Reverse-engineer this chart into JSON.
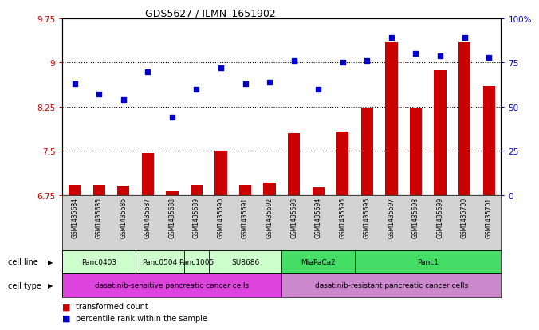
{
  "title": "GDS5627 / ILMN_1651902",
  "samples": [
    "GSM1435684",
    "GSM1435685",
    "GSM1435686",
    "GSM1435687",
    "GSM1435688",
    "GSM1435689",
    "GSM1435690",
    "GSM1435691",
    "GSM1435692",
    "GSM1435693",
    "GSM1435694",
    "GSM1435695",
    "GSM1435696",
    "GSM1435697",
    "GSM1435698",
    "GSM1435699",
    "GSM1435700",
    "GSM1435701"
  ],
  "bar_values": [
    6.93,
    6.93,
    6.91,
    7.47,
    6.82,
    6.93,
    7.5,
    6.93,
    6.97,
    7.8,
    6.88,
    7.83,
    8.22,
    9.35,
    8.22,
    8.87,
    9.35,
    8.6
  ],
  "dot_values": [
    63.0,
    57.0,
    54.0,
    70.0,
    44.0,
    60.0,
    72.0,
    63.0,
    64.0,
    76.0,
    60.0,
    75.0,
    76.0,
    89.0,
    80.0,
    79.0,
    89.0,
    78.0
  ],
  "ylim_left": [
    6.75,
    9.75
  ],
  "ylim_right": [
    0,
    100
  ],
  "yticks_left": [
    6.75,
    7.5,
    8.25,
    9.0,
    9.75
  ],
  "ytick_labels_left": [
    "6.75",
    "7.5",
    "8.25",
    "9",
    "9.75"
  ],
  "yticks_right": [
    0,
    25,
    50,
    75,
    100
  ],
  "ytick_labels_right": [
    "0",
    "25",
    "50",
    "75",
    "100%"
  ],
  "bar_color": "#cc0000",
  "dot_color": "#0000cc",
  "bg_color": "#ffffff",
  "cell_lines": [
    "Panc0403",
    "Panc0504",
    "Panc1005",
    "SU8686",
    "MiaPaCa2",
    "Panc1"
  ],
  "cell_line_sample_counts": [
    3,
    2,
    1,
    3,
    3,
    6
  ],
  "sensitive_cl_color": "#ccffcc",
  "resistant_cl_color": "#44dd66",
  "cell_type_labels": [
    "dasatinib-sensitive pancreatic cancer cells",
    "dasatinib-resistant pancreatic cancer cells"
  ],
  "sensitive_ct_color": "#dd44dd",
  "resistant_ct_color": "#cc88cc",
  "sensitive_count": 9,
  "resistant_count": 9
}
